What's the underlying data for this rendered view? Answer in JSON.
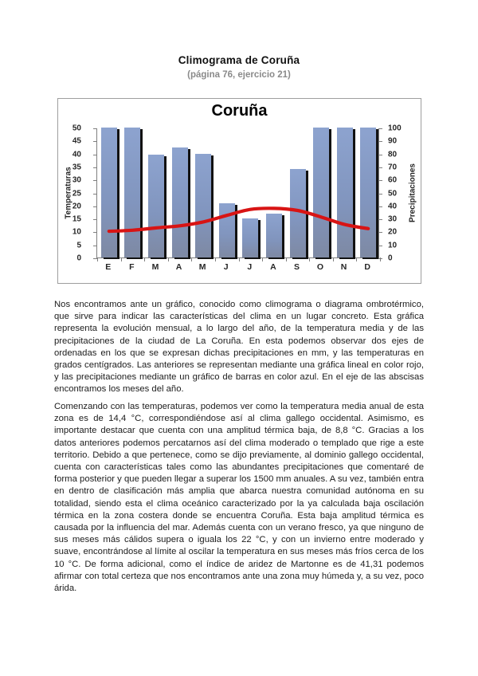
{
  "page": {
    "title": "Climograma de Coruña",
    "subtitle": "(página 76, ejercicio 21)"
  },
  "chart_data": {
    "type": "bar",
    "subtype": "climograph (bar + line, dual axis)",
    "title": "Coruña",
    "categories": [
      "E",
      "F",
      "M",
      "A",
      "M",
      "J",
      "J",
      "A",
      "S",
      "O",
      "N",
      "D"
    ],
    "series": [
      {
        "name": "Precipitaciones",
        "type": "bar",
        "axis": "right",
        "unit": "mm",
        "color": "#8195be",
        "shadow_color": "#121212",
        "values": [
          100,
          100,
          79,
          85,
          80,
          42,
          30,
          34,
          68,
          100,
          100,
          100
        ],
        "note": "bars for E, F, O, N, D are clipped at the 100 mm axis maximum"
      },
      {
        "name": "Temperaturas",
        "type": "line",
        "axis": "left",
        "unit": "°C",
        "color": "#d81414",
        "values": [
          10.4,
          10.8,
          11.7,
          12.5,
          14.0,
          16.5,
          18.8,
          19.2,
          18.4,
          15.9,
          13.0,
          11.4
        ]
      }
    ],
    "left_axis": {
      "label": "Temperaturas",
      "min": 0,
      "max": 50,
      "step": 5
    },
    "right_axis": {
      "label": "Precipitaciones",
      "min": 0,
      "max": 100,
      "step": 10
    },
    "grid": false,
    "legend": "none"
  },
  "paragraphs": [
    "Nos encontramos ante un gráfico, conocido como climograma o diagrama ombrotérmico, que sirve para indicar las características del clima en un lugar concreto. Esta gráfica representa la evolución mensual, a lo largo del año, de la temperatura media y de las precipitaciones de la ciudad de La Coruña. En esta podemos observar dos ejes de ordenadas en los que se expresan dichas precipitaciones en mm, y las temperaturas en grados centígrados. Las anteriores se representan mediante una gráfica lineal en color rojo, y las precipitaciones mediante un gráfico de barras en color azul. En el eje de las abscisas encontramos los meses del año.",
    "Comenzando con las temperaturas, podemos ver como la temperatura media anual de esta zona es de 14,4 °C, correspondiéndose así al clima gallego occidental. Asimismo, es importante destacar que cuenta con una amplitud térmica baja, de 8,8 °C. Gracias a los datos anteriores podemos percatarnos así del clima moderado o templado que rige a este territorio. Debido a que pertenece, como se dijo previamente, al dominio gallego occidental, cuenta con características tales como las abundantes precipitaciones que comentaré de forma posterior y que pueden llegar a superar los 1500 mm anuales. A su vez, también entra en dentro de clasificación más amplia que abarca nuestra comunidad autónoma en su totalidad, siendo esta el clima oceánico caracterizado por la ya calculada baja oscilación térmica en la zona costera donde se encuentra Coruña. Esta baja amplitud térmica es causada por la influencia del mar. Además cuenta con un verano fresco, ya que ninguno de sus meses más cálidos supera o iguala los 22 °C, y con un invierno entre moderado y suave, encontrándose al límite al oscilar la temperatura en sus meses más fríos cerca de los 10 °C. De forma adicional, como el índice de aridez de Martonne es de 41,31 podemos afirmar con total certeza que nos encontramos ante una zona muy húmeda y, a su vez, poco árida."
  ]
}
